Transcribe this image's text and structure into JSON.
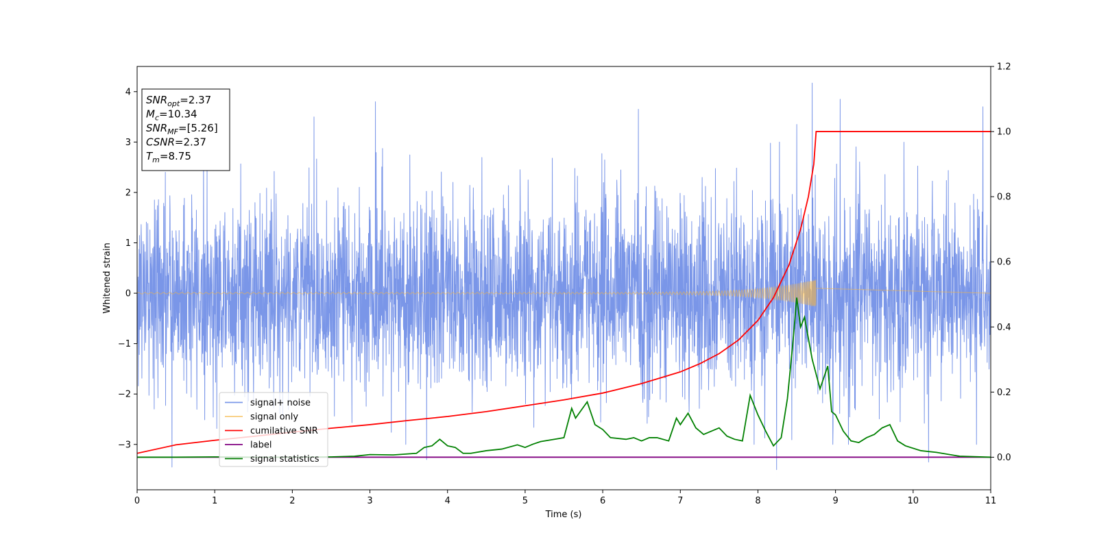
{
  "chart_data": {
    "type": "line",
    "title": "",
    "xlabel": "Time (s)",
    "ylabel": "Whitened strain",
    "xlim": [
      0,
      11
    ],
    "ylim_left": [
      -3.9,
      4.5
    ],
    "ylim_right": [
      -0.1,
      1.2
    ],
    "xticks": [
      "0",
      "1",
      "2",
      "3",
      "4",
      "5",
      "6",
      "7",
      "8",
      "9",
      "10",
      "11"
    ],
    "yticks_left": [
      "−3",
      "−2",
      "−1",
      "0",
      "1",
      "2",
      "3",
      "4"
    ],
    "yticks_right": [
      "0.0",
      "0.2",
      "0.4",
      "0.6",
      "0.8",
      "1.0",
      "1.2"
    ],
    "grid": false,
    "legend_position": "lower-left",
    "annotation": {
      "position": "upper-left",
      "lines": [
        {
          "base": "SNR",
          "sub": "opt",
          "rest": "=2.37"
        },
        {
          "base": "M",
          "sub": "c",
          "rest": "=10.34"
        },
        {
          "base": "SNR",
          "sub": "MF",
          "rest": "=[5.26]"
        },
        {
          "base": "CSNR",
          "sub": "",
          "rest": "=2.37"
        },
        {
          "base": "T",
          "sub": "m",
          "rest": "=8.75"
        }
      ]
    },
    "series": [
      {
        "name": "signal+ noise",
        "axis": "left",
        "color": "#7a96e8",
        "kind": "noise",
        "amplitude_std": 1.0,
        "extrema": [
          [
            0.45,
            -3.45
          ],
          [
            2.28,
            3.5
          ],
          [
            3.07,
            3.8
          ],
          [
            3.73,
            -3.3
          ],
          [
            6.46,
            3.65
          ],
          [
            7.95,
            -3.0
          ],
          [
            8.24,
            -3.5
          ],
          [
            8.5,
            3.35
          ],
          [
            8.7,
            4.17
          ],
          [
            9.06,
            3.85
          ],
          [
            10.2,
            -3.35
          ],
          [
            10.9,
            3.7
          ]
        ]
      },
      {
        "name": "signal only",
        "axis": "left",
        "color": "#f5b642",
        "kind": "chirp",
        "t_merge": 8.75,
        "amplitude_at_merge": 0.28,
        "amplitude_at_start": 0.015
      },
      {
        "name": "cumilative SNR",
        "axis": "right",
        "color": "#ff0000",
        "points": [
          [
            0,
            0.012
          ],
          [
            0.5,
            0.038
          ],
          [
            1,
            0.052
          ],
          [
            1.5,
            0.064
          ],
          [
            2,
            0.077
          ],
          [
            2.5,
            0.089
          ],
          [
            3,
            0.1
          ],
          [
            3.5,
            0.113
          ],
          [
            4,
            0.125
          ],
          [
            4.5,
            0.14
          ],
          [
            5,
            0.158
          ],
          [
            5.5,
            0.176
          ],
          [
            6,
            0.197
          ],
          [
            6.5,
            0.226
          ],
          [
            7,
            0.262
          ],
          [
            7.25,
            0.287
          ],
          [
            7.5,
            0.318
          ],
          [
            7.75,
            0.36
          ],
          [
            8,
            0.42
          ],
          [
            8.2,
            0.49
          ],
          [
            8.4,
            0.59
          ],
          [
            8.55,
            0.7
          ],
          [
            8.65,
            0.8
          ],
          [
            8.72,
            0.9
          ],
          [
            8.75,
            1.0
          ],
          [
            11,
            1.0
          ]
        ]
      },
      {
        "name": "label",
        "axis": "right",
        "color": "#800080",
        "points": [
          [
            0,
            0.0
          ],
          [
            11,
            0.0
          ]
        ]
      },
      {
        "name": "signal statistics",
        "axis": "right",
        "color": "#008000",
        "points": [
          [
            0,
            0.0
          ],
          [
            0.5,
            0.0
          ],
          [
            1,
            0.001
          ],
          [
            1.5,
            0.0
          ],
          [
            2,
            0.0
          ],
          [
            2.5,
            0.001
          ],
          [
            2.8,
            0.003
          ],
          [
            3,
            0.008
          ],
          [
            3.3,
            0.007
          ],
          [
            3.6,
            0.012
          ],
          [
            3.7,
            0.03
          ],
          [
            3.8,
            0.035
          ],
          [
            3.9,
            0.055
          ],
          [
            4,
            0.035
          ],
          [
            4.1,
            0.03
          ],
          [
            4.2,
            0.012
          ],
          [
            4.3,
            0.012
          ],
          [
            4.5,
            0.02
          ],
          [
            4.7,
            0.025
          ],
          [
            4.9,
            0.038
          ],
          [
            5.0,
            0.03
          ],
          [
            5.1,
            0.04
          ],
          [
            5.2,
            0.048
          ],
          [
            5.4,
            0.056
          ],
          [
            5.5,
            0.06
          ],
          [
            5.6,
            0.15
          ],
          [
            5.65,
            0.12
          ],
          [
            5.8,
            0.17
          ],
          [
            5.9,
            0.1
          ],
          [
            6,
            0.085
          ],
          [
            6.1,
            0.06
          ],
          [
            6.3,
            0.055
          ],
          [
            6.4,
            0.06
          ],
          [
            6.5,
            0.05
          ],
          [
            6.6,
            0.06
          ],
          [
            6.7,
            0.06
          ],
          [
            6.85,
            0.05
          ],
          [
            6.95,
            0.12
          ],
          [
            7,
            0.1
          ],
          [
            7.1,
            0.135
          ],
          [
            7.2,
            0.09
          ],
          [
            7.3,
            0.07
          ],
          [
            7.4,
            0.08
          ],
          [
            7.5,
            0.09
          ],
          [
            7.6,
            0.065
          ],
          [
            7.7,
            0.055
          ],
          [
            7.8,
            0.05
          ],
          [
            7.9,
            0.19
          ],
          [
            8.0,
            0.13
          ],
          [
            8.1,
            0.08
          ],
          [
            8.2,
            0.035
          ],
          [
            8.3,
            0.06
          ],
          [
            8.38,
            0.18
          ],
          [
            8.45,
            0.35
          ],
          [
            8.5,
            0.49
          ],
          [
            8.55,
            0.4
          ],
          [
            8.6,
            0.43
          ],
          [
            8.7,
            0.3
          ],
          [
            8.8,
            0.21
          ],
          [
            8.9,
            0.28
          ],
          [
            8.95,
            0.14
          ],
          [
            9,
            0.13
          ],
          [
            9.1,
            0.08
          ],
          [
            9.2,
            0.05
          ],
          [
            9.3,
            0.045
          ],
          [
            9.4,
            0.06
          ],
          [
            9.5,
            0.07
          ],
          [
            9.6,
            0.09
          ],
          [
            9.7,
            0.1
          ],
          [
            9.8,
            0.05
          ],
          [
            9.9,
            0.035
          ],
          [
            10.1,
            0.02
          ],
          [
            10.3,
            0.015
          ],
          [
            10.6,
            0.003
          ],
          [
            11,
            0.0
          ]
        ]
      }
    ]
  }
}
